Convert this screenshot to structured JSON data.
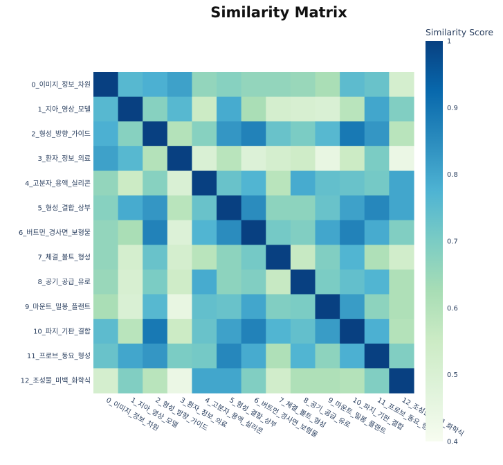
{
  "chart_data": {
    "type": "heatmap",
    "title": "Similarity Matrix",
    "colorbar_title": "Similarity Score",
    "zmin": 0.4,
    "zmax": 1,
    "colorbar_ticks": [
      {
        "value": 1,
        "label": "1"
      },
      {
        "value": 0.9,
        "label": "0.9"
      },
      {
        "value": 0.8,
        "label": "0.8"
      },
      {
        "value": 0.7,
        "label": "0.7"
      },
      {
        "value": 0.6,
        "label": "0.6"
      },
      {
        "value": 0.5,
        "label": "0.5"
      },
      {
        "value": 0.4,
        "label": "0.4"
      }
    ],
    "colorscale": [
      "#f7fcf0",
      "#e0f3db",
      "#ccebc5",
      "#a8ddb5",
      "#7bccc4",
      "#4eb3d3",
      "#2b8cbe",
      "#0868ac",
      "#084081"
    ],
    "labels": [
      "0_이미지_정보_차원",
      "1_지아_영상_모델",
      "2_형성_방향_가이드",
      "3_환자_정보_의료",
      "4_고분자_용액_실리콘",
      "5_형성_결합_상부",
      "6_버트먼_경사면_보형물",
      "7_체결_볼트_형성",
      "8_공기_공급_유로",
      "9_마운트_밀봉_플랜트",
      "10_파지_기판_결합",
      "11_프로브_동요_형성",
      "12_조성물_미백_화학식"
    ],
    "matrix": [
      [
        1.0,
        0.76,
        0.78,
        0.81,
        0.66,
        0.68,
        0.66,
        0.66,
        0.65,
        0.62,
        0.75,
        0.73,
        0.52
      ],
      [
        0.76,
        1.0,
        0.68,
        0.76,
        0.55,
        0.79,
        0.62,
        0.52,
        0.51,
        0.5,
        0.59,
        0.8,
        0.69
      ],
      [
        0.78,
        0.68,
        1.0,
        0.6,
        0.68,
        0.83,
        0.87,
        0.73,
        0.7,
        0.76,
        0.89,
        0.83,
        0.59
      ],
      [
        0.81,
        0.76,
        0.6,
        1.0,
        0.5,
        0.59,
        0.49,
        0.52,
        0.54,
        0.45,
        0.55,
        0.7,
        0.44
      ],
      [
        0.66,
        0.55,
        0.68,
        0.5,
        1.0,
        0.73,
        0.77,
        0.59,
        0.79,
        0.74,
        0.73,
        0.71,
        0.8
      ],
      [
        0.68,
        0.79,
        0.83,
        0.59,
        0.73,
        1.0,
        0.85,
        0.67,
        0.67,
        0.73,
        0.81,
        0.86,
        0.8
      ],
      [
        0.66,
        0.62,
        0.87,
        0.49,
        0.77,
        0.85,
        1.0,
        0.71,
        0.69,
        0.8,
        0.87,
        0.79,
        0.69
      ],
      [
        0.66,
        0.52,
        0.73,
        0.52,
        0.59,
        0.67,
        0.71,
        1.0,
        0.56,
        0.69,
        0.77,
        0.61,
        0.53
      ],
      [
        0.65,
        0.51,
        0.7,
        0.54,
        0.79,
        0.67,
        0.69,
        0.56,
        1.0,
        0.7,
        0.74,
        0.77,
        0.61
      ],
      [
        0.62,
        0.5,
        0.76,
        0.45,
        0.74,
        0.73,
        0.8,
        0.69,
        0.7,
        1.0,
        0.82,
        0.67,
        0.61
      ],
      [
        0.75,
        0.59,
        0.89,
        0.55,
        0.73,
        0.81,
        0.87,
        0.77,
        0.74,
        0.82,
        1.0,
        0.78,
        0.6
      ],
      [
        0.73,
        0.8,
        0.83,
        0.7,
        0.71,
        0.86,
        0.79,
        0.61,
        0.77,
        0.67,
        0.78,
        1.0,
        0.69
      ],
      [
        0.52,
        0.69,
        0.59,
        0.44,
        0.8,
        0.8,
        0.69,
        0.53,
        0.61,
        0.61,
        0.6,
        0.69,
        1.0
      ]
    ]
  }
}
